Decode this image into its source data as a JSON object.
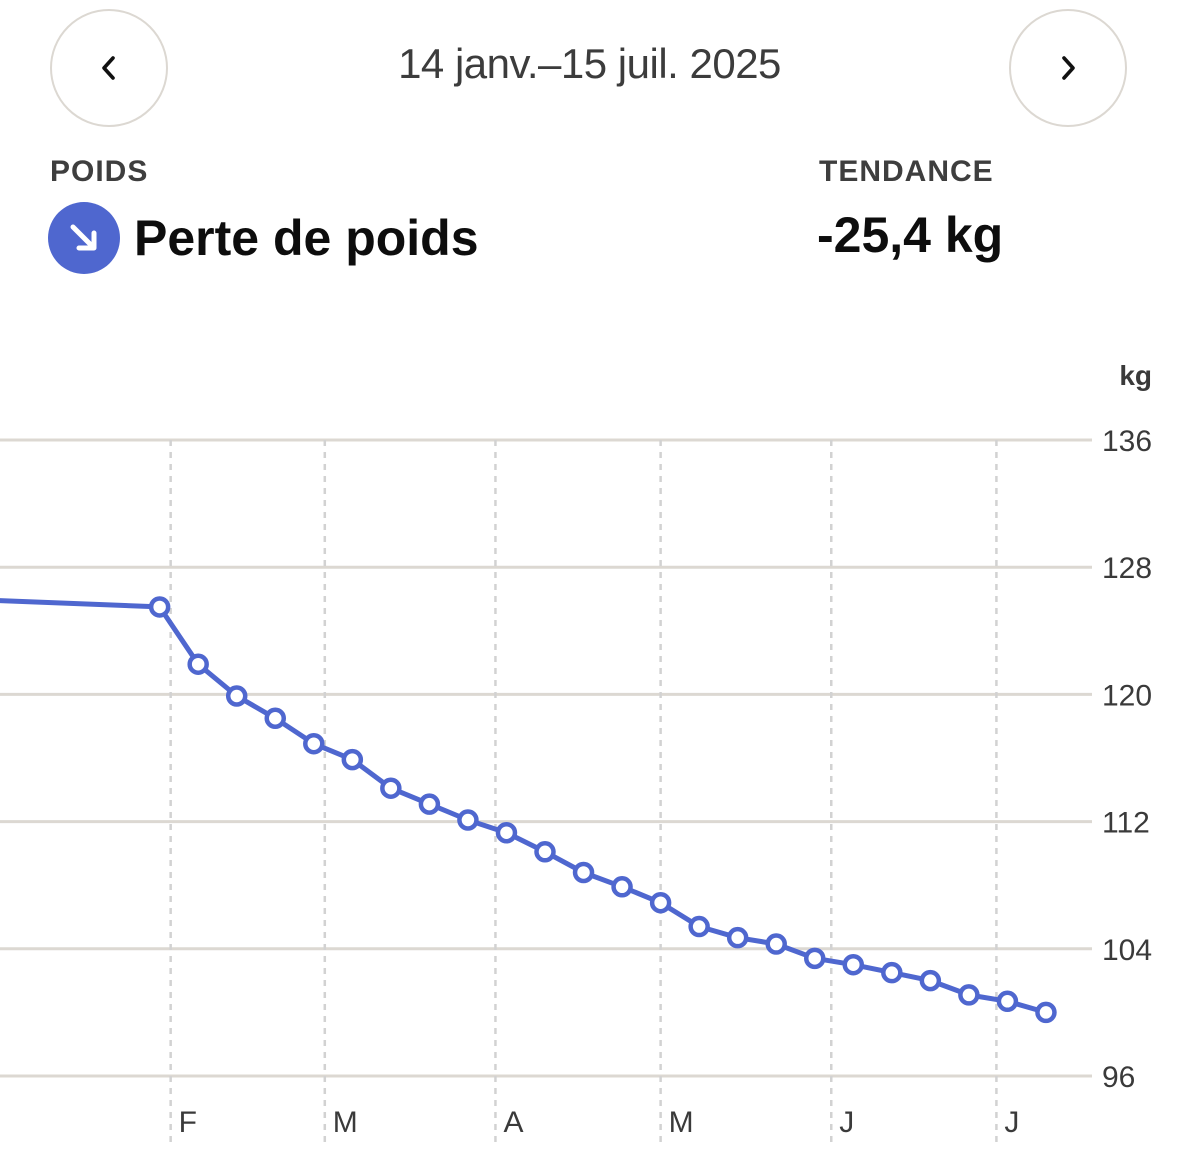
{
  "header": {
    "date_range": "14 janv.–15 juil. 2025",
    "prev_icon": "chevron-left-icon",
    "next_icon": "chevron-right-icon"
  },
  "summary": {
    "metric_label": "POIDS",
    "status_text": "Perte de poids",
    "status_icon": "arrow-down-right-icon",
    "trend_label": "TENDANCE",
    "trend_value": "-25,4 kg"
  },
  "colors": {
    "accent": "#4f67cf",
    "grid": "#dcd8d2"
  },
  "chart_data": {
    "type": "line",
    "ylabel": "kg",
    "ylim": [
      96,
      136
    ],
    "yticks": [
      136,
      128,
      120,
      112,
      104,
      96
    ],
    "ytick_labels": [
      "136",
      "128",
      "120",
      "112",
      "104",
      "96"
    ],
    "xlim": [
      "2025-01-01",
      "2025-07-18"
    ],
    "month_ticks": [
      {
        "date": "2025-02-01",
        "label": "F"
      },
      {
        "date": "2025-03-01",
        "label": "M"
      },
      {
        "date": "2025-04-01",
        "label": "A"
      },
      {
        "date": "2025-05-01",
        "label": "M"
      },
      {
        "date": "2025-06-01",
        "label": "J"
      },
      {
        "date": "2025-07-01",
        "label": "J"
      }
    ],
    "series": [
      {
        "entry_point": {
          "x": "2025-01-01",
          "y": 125.9
        },
        "points": [
          {
            "x": "2025-01-30",
            "y": 125.5
          },
          {
            "x": "2025-02-06",
            "y": 121.9
          },
          {
            "x": "2025-02-13",
            "y": 119.9
          },
          {
            "x": "2025-02-20",
            "y": 118.5
          },
          {
            "x": "2025-02-27",
            "y": 116.9
          },
          {
            "x": "2025-03-06",
            "y": 115.9
          },
          {
            "x": "2025-03-13",
            "y": 114.1
          },
          {
            "x": "2025-03-20",
            "y": 113.1
          },
          {
            "x": "2025-03-27",
            "y": 112.1
          },
          {
            "x": "2025-04-03",
            "y": 111.3
          },
          {
            "x": "2025-04-10",
            "y": 110.1
          },
          {
            "x": "2025-04-17",
            "y": 108.8
          },
          {
            "x": "2025-04-24",
            "y": 107.9
          },
          {
            "x": "2025-05-01",
            "y": 106.9
          },
          {
            "x": "2025-05-08",
            "y": 105.4
          },
          {
            "x": "2025-05-15",
            "y": 104.7
          },
          {
            "x": "2025-05-22",
            "y": 104.3
          },
          {
            "x": "2025-05-29",
            "y": 103.4
          },
          {
            "x": "2025-06-05",
            "y": 103.0
          },
          {
            "x": "2025-06-12",
            "y": 102.5
          },
          {
            "x": "2025-06-19",
            "y": 102.0
          },
          {
            "x": "2025-06-26",
            "y": 101.1
          },
          {
            "x": "2025-07-03",
            "y": 100.7
          },
          {
            "x": "2025-07-10",
            "y": 100.0
          }
        ]
      }
    ]
  }
}
